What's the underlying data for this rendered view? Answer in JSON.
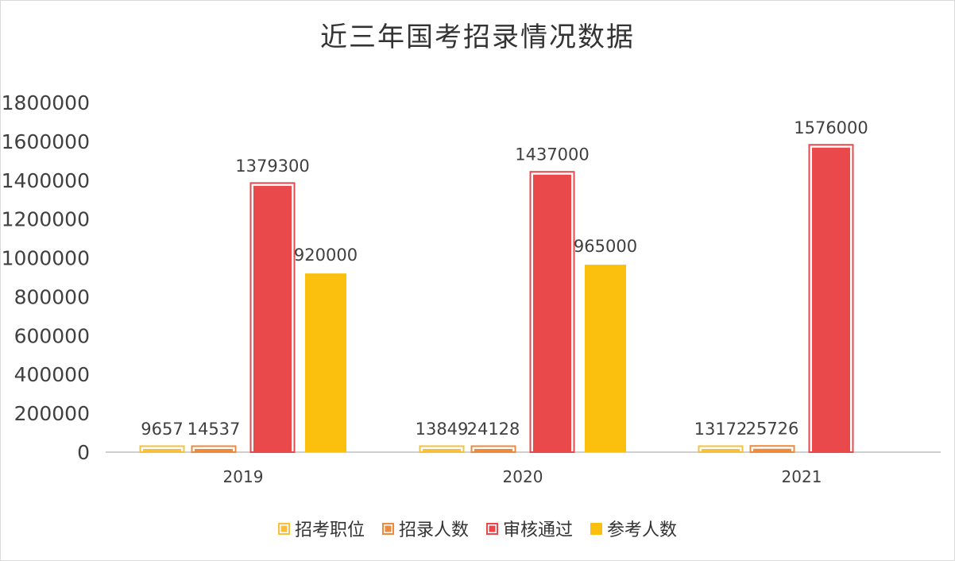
{
  "chart_data": {
    "type": "bar",
    "title": "近三年国考招录情况数据",
    "xlabel": "",
    "ylabel": "",
    "ylim": [
      0,
      1800000
    ],
    "yticks": [
      0,
      200000,
      400000,
      600000,
      800000,
      1000000,
      1200000,
      1400000,
      1600000,
      1800000
    ],
    "grid": false,
    "legend_position": "bottom",
    "categories": [
      "2019",
      "2020",
      "2021"
    ],
    "series": [
      {
        "name": "招考职位",
        "values": [
          9657,
          13849,
          13172
        ],
        "color": "#f7bf3a",
        "outlined": true
      },
      {
        "name": "招录人数",
        "values": [
          14537,
          24128,
          25726
        ],
        "color": "#f08a3b",
        "outlined": true
      },
      {
        "name": "审核通过",
        "values": [
          1379300,
          1437000,
          1576000
        ],
        "color": "#e9494b",
        "outlined": true
      },
      {
        "name": "参考人数",
        "values": [
          920000,
          965000,
          null
        ],
        "color": "#fbbf0d",
        "outlined": false
      }
    ],
    "data_labels": [
      [
        "9657",
        "14537",
        "1379300",
        "920000"
      ],
      [
        "13849",
        "24128",
        "1437000",
        "965000"
      ],
      [
        "13172",
        "25726",
        "1576000",
        ""
      ]
    ]
  }
}
